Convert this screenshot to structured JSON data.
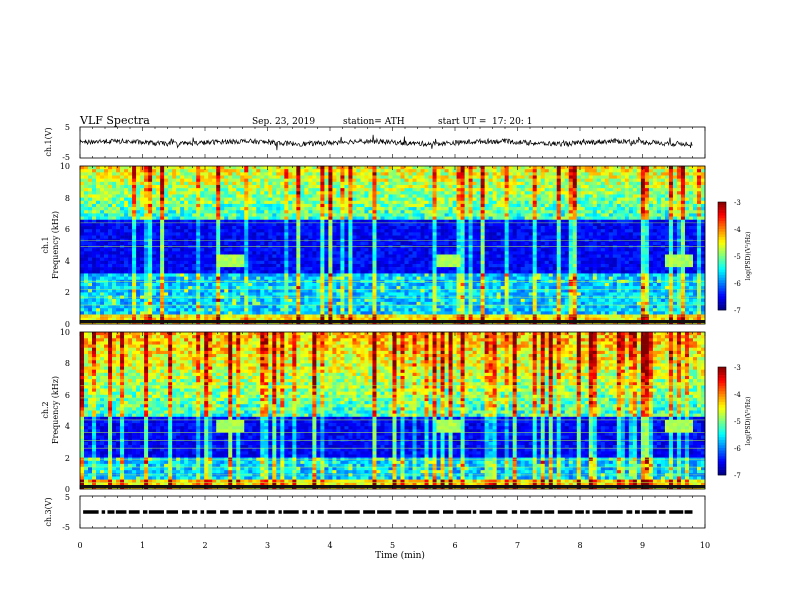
{
  "header": {
    "title": "VLF Spectra",
    "date": "Sep. 23, 2019",
    "station": "station= ATH",
    "start": "start UT =",
    "start_time": "17: 20: 1"
  },
  "chart_data": [
    {
      "type": "line",
      "name": "ch1-waveform",
      "ylabel": "ch.1(V)",
      "ylim": [
        -5,
        5
      ],
      "yticks": [
        "5",
        "-5"
      ],
      "xlim": [
        0,
        10
      ],
      "baseline": 0.0
    },
    {
      "type": "heatmap",
      "name": "ch1-spectrogram",
      "ylabel_top": "ch.1",
      "ylabel": "Frequency (kHz)",
      "ylim": [
        0,
        10
      ],
      "yticks": [
        "0",
        "2",
        "4",
        "6",
        "8",
        "10"
      ],
      "xlim": [
        0,
        10
      ],
      "colorbar": {
        "label": "log(PSD)(V²/Hz)",
        "ticks": [
          "-3",
          "-4",
          "-5",
          "-6",
          "-7"
        ],
        "range": [
          -7,
          -3
        ]
      },
      "features": {
        "quiet_band_khz": [
          3.2,
          6.5
        ],
        "bursts_min": [
          2.4,
          5.9,
          9.6
        ],
        "burst_freq_khz": 4.0
      }
    },
    {
      "type": "heatmap",
      "name": "ch2-spectrogram",
      "ylabel_top": "ch.2",
      "ylabel": "Frequency (kHz)",
      "ylim": [
        0,
        10
      ],
      "yticks": [
        "0",
        "2",
        "4",
        "6",
        "8",
        "10"
      ],
      "xlim": [
        0,
        10
      ],
      "colorbar": {
        "label": "log(PSD)(V²/Hz)",
        "ticks": [
          "-3",
          "-4",
          "-5",
          "-6",
          "-7"
        ],
        "range": [
          -7,
          -3
        ]
      },
      "features": {
        "quiet_band_khz": [
          2.0,
          4.6
        ],
        "bursts_min": [
          2.4,
          5.9,
          9.6
        ],
        "burst_freq_khz": 4.0
      }
    },
    {
      "type": "line",
      "name": "ch3-waveform",
      "ylabel": "ch.3(V)",
      "ylim": [
        -5,
        5
      ],
      "yticks": [
        "5",
        "-5"
      ],
      "xlim": [
        0,
        10
      ],
      "baseline": 0.0,
      "xlabel": "Time (min)",
      "xticks": [
        "0",
        "1",
        "2",
        "3",
        "4",
        "5",
        "6",
        "7",
        "8",
        "9",
        "10"
      ]
    }
  ],
  "colors": {
    "jet": [
      "#00007f",
      "#0000ff",
      "#007fff",
      "#00ffff",
      "#7fff7f",
      "#ffff00",
      "#ff7f00",
      "#ff0000",
      "#7f0000"
    ],
    "axis": "#000000"
  }
}
